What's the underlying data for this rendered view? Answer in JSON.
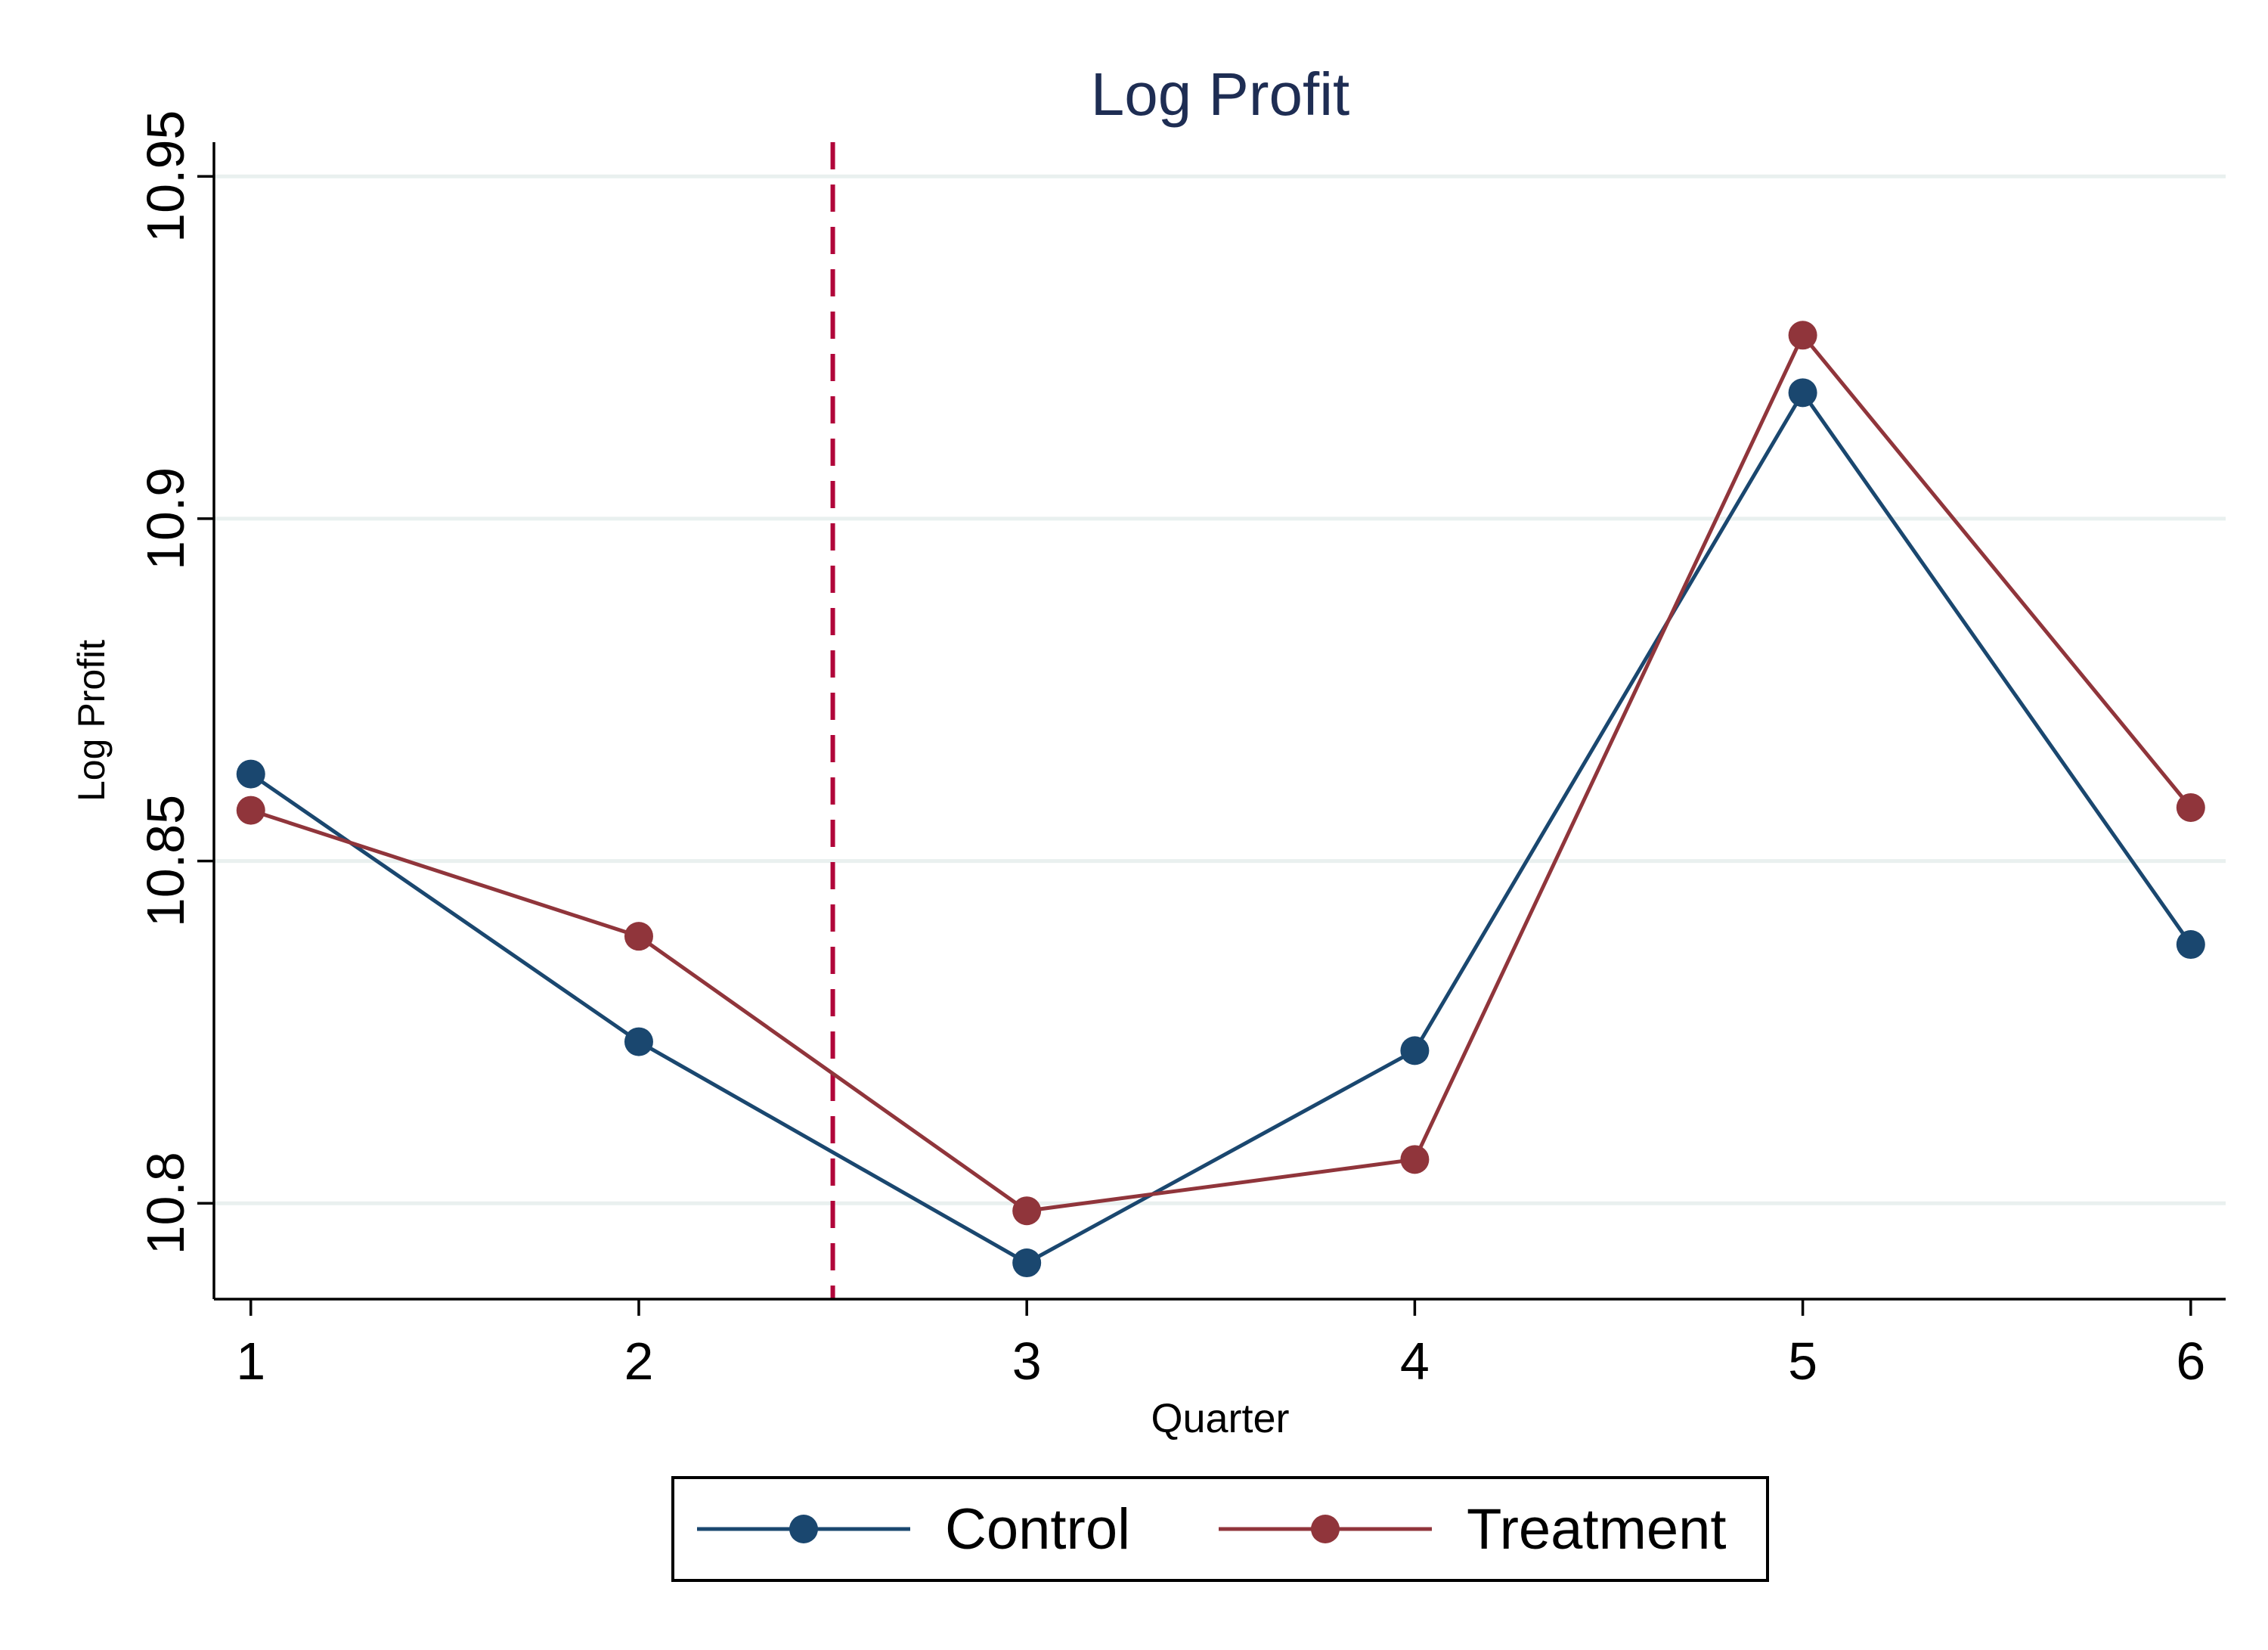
{
  "chart_data": {
    "type": "line",
    "title": "Log Profit",
    "xlabel": "Quarter",
    "ylabel": "Log Profit",
    "x": [
      1,
      2,
      3,
      4,
      5,
      6
    ],
    "x_ticks": [
      "1",
      "2",
      "3",
      "4",
      "5",
      "6"
    ],
    "xlim": [
      0.905,
      6.09
    ],
    "y_ticks": [
      10.8,
      10.85,
      10.9,
      10.95
    ],
    "y_tick_labels": [
      "10.8",
      "10.85",
      "10.9",
      "10.95"
    ],
    "ylim": [
      10.786,
      10.955
    ],
    "grid": "horizontal",
    "reference_line": {
      "x": 2.5,
      "style": "dashed",
      "color": "#b1063a"
    },
    "legend_position": "bottom",
    "series": [
      {
        "name": "Control",
        "color": "#1a476f",
        "values": [
          10.8627,
          10.8236,
          10.7913,
          10.8223,
          10.9184,
          10.8378
        ]
      },
      {
        "name": "Treatment",
        "color": "#90353b",
        "values": [
          10.8574,
          10.839,
          10.7989,
          10.8064,
          10.9268,
          10.8578
        ]
      }
    ]
  }
}
